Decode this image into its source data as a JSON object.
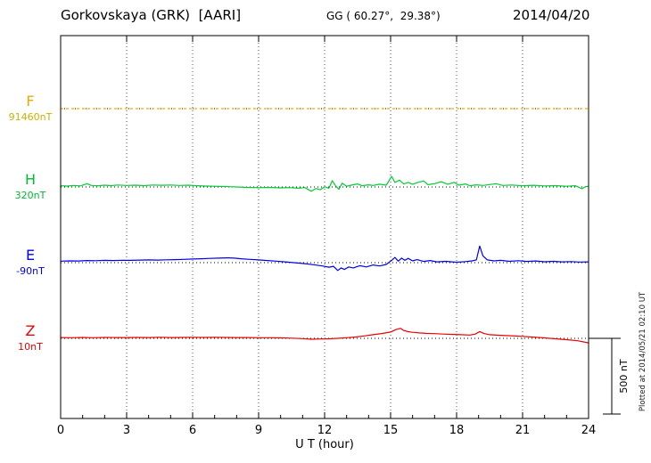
{
  "header": {
    "station": "Gorkovskaya (GRK)  [AARI]",
    "coords": "GG ( 60.27°,  29.38°)",
    "date": "2014/04/20"
  },
  "xaxis": {
    "label": "U T (hour)",
    "min": 0,
    "max": 24,
    "ticks": [
      0,
      3,
      6,
      9,
      12,
      15,
      18,
      21,
      24
    ]
  },
  "scalebar": {
    "label": "500 nT",
    "nT": 500
  },
  "footer_note": "Plotted at 2014/05/21 02:10 UT",
  "chart_data": {
    "type": "line",
    "title": "Gorkovskaya (GRK) [AARI] magnetogram",
    "date": "2014/04/20",
    "xlabel": "U T (hour)",
    "xlim": [
      0,
      24
    ],
    "grid": "dotted vertical every 3 hours, dotted baseline per component",
    "scale_bar_nT": 500,
    "series": [
      {
        "name": "F",
        "baseline_label": "91460nT",
        "baseline_value_nT": 91460,
        "color": "#F5A800",
        "label_color": "#F5A800",
        "value_color": "#C9B400",
        "style": "dashed",
        "points": [
          [
            0,
            0
          ],
          [
            24,
            0
          ]
        ]
      },
      {
        "name": "H",
        "baseline_label": "320nT",
        "baseline_value_nT": 320,
        "color": "#00CC33",
        "label_color": "#00BB33",
        "value_color": "#00BB33",
        "style": "solid",
        "points": [
          [
            0,
            8
          ],
          [
            0.3,
            6
          ],
          [
            0.6,
            10
          ],
          [
            0.9,
            7
          ],
          [
            1.2,
            22
          ],
          [
            1.4,
            10
          ],
          [
            1.7,
            8
          ],
          [
            2,
            12
          ],
          [
            2.3,
            9
          ],
          [
            2.6,
            13
          ],
          [
            3,
            10
          ],
          [
            3.4,
            12
          ],
          [
            3.8,
            9
          ],
          [
            4.2,
            13
          ],
          [
            4.6,
            11
          ],
          [
            5,
            13
          ],
          [
            5.4,
            10
          ],
          [
            5.8,
            12
          ],
          [
            6.2,
            8
          ],
          [
            6.6,
            6
          ],
          [
            7,
            5
          ],
          [
            7.5,
            3
          ],
          [
            8,
            0
          ],
          [
            8.5,
            -3
          ],
          [
            9,
            -5
          ],
          [
            9.5,
            -3
          ],
          [
            10,
            -6
          ],
          [
            10.4,
            -4
          ],
          [
            10.8,
            -8
          ],
          [
            11.1,
            -4
          ],
          [
            11.4,
            -28
          ],
          [
            11.6,
            -10
          ],
          [
            11.8,
            -18
          ],
          [
            12,
            2
          ],
          [
            12.2,
            -8
          ],
          [
            12.35,
            42
          ],
          [
            12.5,
            8
          ],
          [
            12.65,
            -15
          ],
          [
            12.8,
            25
          ],
          [
            13,
            5
          ],
          [
            13.2,
            12
          ],
          [
            13.5,
            20
          ],
          [
            13.7,
            8
          ],
          [
            14,
            14
          ],
          [
            14.2,
            10
          ],
          [
            14.5,
            18
          ],
          [
            14.8,
            12
          ],
          [
            15.05,
            70
          ],
          [
            15.2,
            30
          ],
          [
            15.4,
            45
          ],
          [
            15.6,
            20
          ],
          [
            15.8,
            30
          ],
          [
            16,
            18
          ],
          [
            16.2,
            28
          ],
          [
            16.5,
            40
          ],
          [
            16.7,
            15
          ],
          [
            17,
            22
          ],
          [
            17.3,
            35
          ],
          [
            17.6,
            18
          ],
          [
            17.9,
            30
          ],
          [
            18.1,
            12
          ],
          [
            18.4,
            20
          ],
          [
            18.6,
            8
          ],
          [
            18.9,
            14
          ],
          [
            19.2,
            10
          ],
          [
            19.5,
            16
          ],
          [
            19.8,
            22
          ],
          [
            20.1,
            10
          ],
          [
            20.5,
            13
          ],
          [
            21,
            8
          ],
          [
            21.5,
            11
          ],
          [
            22,
            7
          ],
          [
            22.5,
            9
          ],
          [
            23,
            5
          ],
          [
            23.4,
            8
          ],
          [
            23.7,
            -12
          ],
          [
            23.85,
            2
          ],
          [
            24,
            5
          ]
        ]
      },
      {
        "name": "E",
        "baseline_label": "-90nT",
        "baseline_value_nT": -90,
        "color": "#0000EE",
        "label_color": "#0000EE",
        "value_color": "#0000EE",
        "style": "solid",
        "points": [
          [
            0,
            10
          ],
          [
            0.4,
            12
          ],
          [
            0.8,
            11
          ],
          [
            1.2,
            14
          ],
          [
            1.6,
            13
          ],
          [
            2,
            15
          ],
          [
            2.4,
            14
          ],
          [
            2.8,
            16
          ],
          [
            3.2,
            15
          ],
          [
            3.6,
            17
          ],
          [
            4,
            18
          ],
          [
            4.4,
            17
          ],
          [
            4.8,
            19
          ],
          [
            5.2,
            20
          ],
          [
            5.6,
            22
          ],
          [
            6,
            24
          ],
          [
            6.4,
            26
          ],
          [
            6.8,
            28
          ],
          [
            7.2,
            30
          ],
          [
            7.6,
            32
          ],
          [
            7.9,
            30
          ],
          [
            8.2,
            26
          ],
          [
            8.6,
            22
          ],
          [
            9,
            18
          ],
          [
            9.4,
            14
          ],
          [
            9.8,
            10
          ],
          [
            10.2,
            5
          ],
          [
            10.6,
            0
          ],
          [
            11,
            -5
          ],
          [
            11.3,
            -10
          ],
          [
            11.6,
            -16
          ],
          [
            11.9,
            -22
          ],
          [
            12.2,
            -30
          ],
          [
            12.4,
            -24
          ],
          [
            12.6,
            -52
          ],
          [
            12.75,
            -35
          ],
          [
            12.9,
            -45
          ],
          [
            13.1,
            -28
          ],
          [
            13.3,
            -35
          ],
          [
            13.6,
            -20
          ],
          [
            13.9,
            -28
          ],
          [
            14.2,
            -15
          ],
          [
            14.5,
            -22
          ],
          [
            14.8,
            -12
          ],
          [
            15.05,
            15
          ],
          [
            15.2,
            35
          ],
          [
            15.35,
            10
          ],
          [
            15.5,
            30
          ],
          [
            15.65,
            15
          ],
          [
            15.8,
            28
          ],
          [
            16,
            12
          ],
          [
            16.2,
            20
          ],
          [
            16.5,
            8
          ],
          [
            16.8,
            14
          ],
          [
            17.1,
            5
          ],
          [
            17.5,
            9
          ],
          [
            18,
            3
          ],
          [
            18.4,
            7
          ],
          [
            18.7,
            12
          ],
          [
            18.9,
            18
          ],
          [
            19.05,
            110
          ],
          [
            19.2,
            45
          ],
          [
            19.4,
            18
          ],
          [
            19.7,
            12
          ],
          [
            20,
            15
          ],
          [
            20.4,
            9
          ],
          [
            20.8,
            13
          ],
          [
            21.2,
            8
          ],
          [
            21.6,
            11
          ],
          [
            22,
            6
          ],
          [
            22.4,
            9
          ],
          [
            22.8,
            5
          ],
          [
            23.2,
            7
          ],
          [
            23.6,
            4
          ],
          [
            24,
            5
          ]
        ]
      },
      {
        "name": "Z",
        "baseline_label": "10nT",
        "baseline_value_nT": 10,
        "color": "#EE0000",
        "label_color": "#EE0000",
        "value_color": "#EE0000",
        "style": "solid",
        "points": [
          [
            0,
            5
          ],
          [
            0.5,
            4
          ],
          [
            1,
            6
          ],
          [
            1.5,
            4
          ],
          [
            2,
            6
          ],
          [
            2.5,
            5
          ],
          [
            3,
            5
          ],
          [
            3.5,
            6
          ],
          [
            4,
            5
          ],
          [
            4.5,
            7
          ],
          [
            5,
            5
          ],
          [
            5.5,
            6
          ],
          [
            6,
            7
          ],
          [
            6.5,
            6
          ],
          [
            7,
            7
          ],
          [
            7.5,
            6
          ],
          [
            8,
            5
          ],
          [
            8.5,
            5
          ],
          [
            9,
            4
          ],
          [
            9.5,
            4
          ],
          [
            10,
            3
          ],
          [
            10.5,
            1
          ],
          [
            11,
            -2
          ],
          [
            11.4,
            -6
          ],
          [
            11.8,
            -4
          ],
          [
            12.2,
            -3
          ],
          [
            12.6,
            0
          ],
          [
            13,
            4
          ],
          [
            13.4,
            9
          ],
          [
            13.8,
            16
          ],
          [
            14.2,
            24
          ],
          [
            14.6,
            32
          ],
          [
            15,
            42
          ],
          [
            15.25,
            58
          ],
          [
            15.45,
            66
          ],
          [
            15.6,
            52
          ],
          [
            15.8,
            44
          ],
          [
            16,
            40
          ],
          [
            16.3,
            36
          ],
          [
            16.6,
            33
          ],
          [
            17,
            31
          ],
          [
            17.4,
            28
          ],
          [
            17.8,
            26
          ],
          [
            18.2,
            24
          ],
          [
            18.6,
            22
          ],
          [
            18.85,
            28
          ],
          [
            19.05,
            45
          ],
          [
            19.25,
            32
          ],
          [
            19.5,
            24
          ],
          [
            20,
            20
          ],
          [
            20.5,
            17
          ],
          [
            21,
            13
          ],
          [
            21.5,
            8
          ],
          [
            22,
            3
          ],
          [
            22.5,
            -3
          ],
          [
            23,
            -9
          ],
          [
            23.5,
            -16
          ],
          [
            23.8,
            -24
          ],
          [
            24,
            -30
          ]
        ]
      }
    ]
  }
}
